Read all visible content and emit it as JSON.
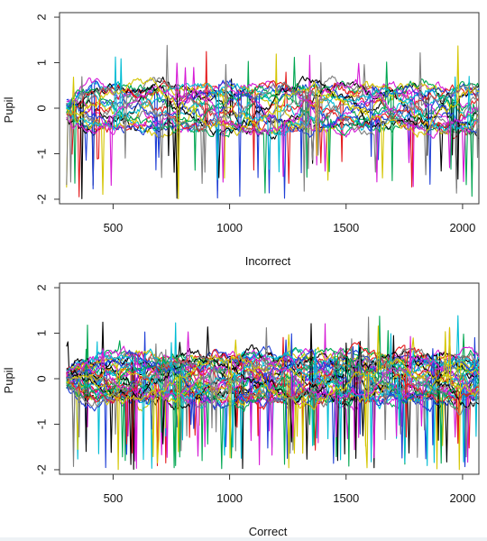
{
  "chart_data": [
    {
      "type": "line",
      "xlabel": "Incorrect",
      "ylabel": "Pupil",
      "xlim": [
        270,
        2070
      ],
      "ylim": [
        -2.1,
        2.1
      ],
      "x_ticks": [
        500,
        1000,
        1500,
        2000
      ],
      "x_tick_labels": [
        "500",
        "1000",
        "1500",
        "2000"
      ],
      "y_ticks": [
        -2,
        -1,
        0,
        1,
        2
      ],
      "y_tick_labels": [
        "-2",
        "-1",
        "0",
        "1",
        "2"
      ],
      "grid": false,
      "legend": "none",
      "x_start": 300,
      "x_end": 2070,
      "n_series": 24,
      "series_colors": [
        "#000000",
        "#e41a1c",
        "#00a651",
        "#1f3fd6",
        "#00bcd4",
        "#d61cd6",
        "#d4c500",
        "#7f7f7f"
      ],
      "notes": "many overlapping pupil traces around 0"
    },
    {
      "type": "line",
      "xlabel": "Correct",
      "ylabel": "Pupil",
      "xlim": [
        270,
        2070
      ],
      "ylim": [
        -2.1,
        2.1
      ],
      "x_ticks": [
        500,
        1000,
        1500,
        2000
      ],
      "x_tick_labels": [
        "500",
        "1000",
        "1500",
        "2000"
      ],
      "y_ticks": [
        -2,
        -1,
        0,
        1,
        2
      ],
      "y_tick_labels": [
        "-2",
        "-1",
        "0",
        "1",
        "2"
      ],
      "grid": false,
      "legend": "none",
      "x_start": 300,
      "x_end": 2070,
      "n_series": 40,
      "series_colors": [
        "#000000",
        "#e41a1c",
        "#00a651",
        "#1f3fd6",
        "#00bcd4",
        "#d61cd6",
        "#d4c500",
        "#7f7f7f"
      ],
      "notes": "many overlapping pupil traces around 0"
    }
  ]
}
